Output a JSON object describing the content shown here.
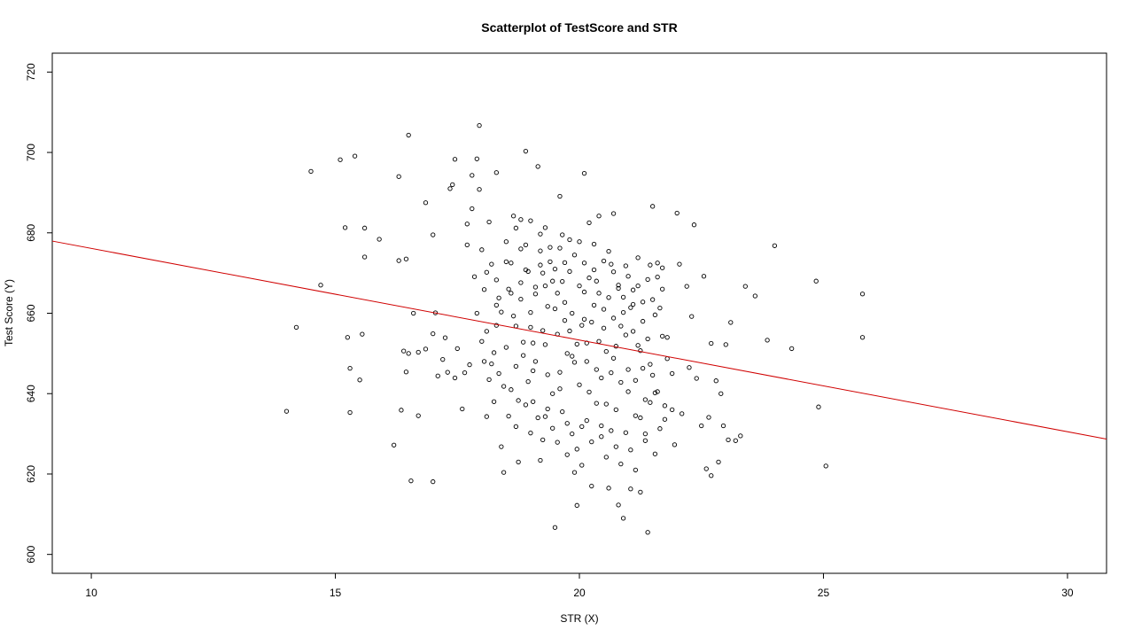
{
  "chart_data": {
    "type": "scatter",
    "title": "Scatterplot of TestScore and STR",
    "xlabel": "STR (X)",
    "ylabel": "Test Score (Y)",
    "xlim": [
      9.2,
      30.8
    ],
    "ylim": [
      595.3,
      724.7
    ],
    "x_ticks": [
      10,
      15,
      20,
      25,
      30
    ],
    "y_ticks": [
      600,
      620,
      640,
      660,
      680,
      700,
      720
    ],
    "grid": false,
    "legend": "none",
    "colors": {
      "points": "#000000",
      "regression_line": "#d00000"
    },
    "regression_line": {
      "intercept": 698.93,
      "slope": -2.28,
      "x_range": [
        9.2,
        30.8
      ]
    },
    "points": [
      [
        14.0,
        635.6
      ],
      [
        14.2,
        656.5
      ],
      [
        14.5,
        695.3
      ],
      [
        14.7,
        667.0
      ],
      [
        15.1,
        698.2
      ],
      [
        15.2,
        681.3
      ],
      [
        15.25,
        654.0
      ],
      [
        15.3,
        635.3
      ],
      [
        15.3,
        646.3
      ],
      [
        15.4,
        699.1
      ],
      [
        15.5,
        643.4
      ],
      [
        15.55,
        654.8
      ],
      [
        15.6,
        681.2
      ],
      [
        15.6,
        674.0
      ],
      [
        15.9,
        678.4
      ],
      [
        16.2,
        627.2
      ],
      [
        16.3,
        694.0
      ],
      [
        16.3,
        673.1
      ],
      [
        16.35,
        635.9
      ],
      [
        16.4,
        650.6
      ],
      [
        16.45,
        645.4
      ],
      [
        16.5,
        650.0
      ],
      [
        16.45,
        673.5
      ],
      [
        16.5,
        704.3
      ],
      [
        16.55,
        618.3
      ],
      [
        16.6,
        660.0
      ],
      [
        16.7,
        634.5
      ],
      [
        16.7,
        650.3
      ],
      [
        16.85,
        687.5
      ],
      [
        16.85,
        651.1
      ],
      [
        17.0,
        679.5
      ],
      [
        17.0,
        654.9
      ],
      [
        17.0,
        618.1
      ],
      [
        17.05,
        660.1
      ],
      [
        17.1,
        644.4
      ],
      [
        17.2,
        648.5
      ],
      [
        17.25,
        653.9
      ],
      [
        17.3,
        645.3
      ],
      [
        17.35,
        691.0
      ],
      [
        17.4,
        692.0
      ],
      [
        17.45,
        698.3
      ],
      [
        17.45,
        643.9
      ],
      [
        17.5,
        651.2
      ],
      [
        17.6,
        636.2
      ],
      [
        17.65,
        645.2
      ],
      [
        17.7,
        682.2
      ],
      [
        17.7,
        677.0
      ],
      [
        17.75,
        647.2
      ],
      [
        17.8,
        694.3
      ],
      [
        17.8,
        686.0
      ],
      [
        17.85,
        669.1
      ],
      [
        17.9,
        698.4
      ],
      [
        17.95,
        706.7
      ],
      [
        17.95,
        690.8
      ],
      [
        18.0,
        675.8
      ],
      [
        18.05,
        665.9
      ],
      [
        18.1,
        655.5
      ],
      [
        18.1,
        634.3
      ],
      [
        18.15,
        682.7
      ],
      [
        18.2,
        672.2
      ],
      [
        18.25,
        650.2
      ],
      [
        18.3,
        695.0
      ],
      [
        18.3,
        662.0
      ],
      [
        18.35,
        645.0
      ],
      [
        18.4,
        626.8
      ],
      [
        18.45,
        620.4
      ],
      [
        18.5,
        677.8
      ],
      [
        18.55,
        666.0
      ],
      [
        18.6,
        672.5
      ],
      [
        18.6,
        641.0
      ],
      [
        18.65,
        684.2
      ],
      [
        18.7,
        656.8
      ],
      [
        18.7,
        631.8
      ],
      [
        18.75,
        623.0
      ],
      [
        18.8,
        683.3
      ],
      [
        18.8,
        663.5
      ],
      [
        18.85,
        649.5
      ],
      [
        18.9,
        700.3
      ],
      [
        18.9,
        637.2
      ],
      [
        18.95,
        670.4
      ],
      [
        19.0,
        656.5
      ],
      [
        19.0,
        630.2
      ],
      [
        19.05,
        645.7
      ],
      [
        19.1,
        664.8
      ],
      [
        19.15,
        696.5
      ],
      [
        19.2,
        679.7
      ],
      [
        19.2,
        623.4
      ],
      [
        19.25,
        670.0
      ],
      [
        19.3,
        652.2
      ],
      [
        19.3,
        634.3
      ],
      [
        19.35,
        661.7
      ],
      [
        19.4,
        672.8
      ],
      [
        19.45,
        640.0
      ],
      [
        19.5,
        606.7
      ],
      [
        19.55,
        665.0
      ],
      [
        19.6,
        689.1
      ],
      [
        19.6,
        645.3
      ],
      [
        19.65,
        679.5
      ],
      [
        19.7,
        658.2
      ],
      [
        19.75,
        632.6
      ],
      [
        19.8,
        670.4
      ],
      [
        19.85,
        649.3
      ],
      [
        19.9,
        620.4
      ],
      [
        19.95,
        612.2
      ],
      [
        20.0,
        666.8
      ],
      [
        20.0,
        642.2
      ],
      [
        20.05,
        631.8
      ],
      [
        20.1,
        694.8
      ],
      [
        20.1,
        658.5
      ],
      [
        20.15,
        648.0
      ],
      [
        20.2,
        682.5
      ],
      [
        20.25,
        617.0
      ],
      [
        20.3,
        670.8
      ],
      [
        20.35,
        646.0
      ],
      [
        20.4,
        684.2
      ],
      [
        20.45,
        629.3
      ],
      [
        20.5,
        661.0
      ],
      [
        20.55,
        637.4
      ],
      [
        20.6,
        616.5
      ],
      [
        20.65,
        672.2
      ],
      [
        20.7,
        684.8
      ],
      [
        20.7,
        648.8
      ],
      [
        20.75,
        626.8
      ],
      [
        20.8,
        612.3
      ],
      [
        20.85,
        656.8
      ],
      [
        20.9,
        609.0
      ],
      [
        20.95,
        671.8
      ],
      [
        21.0,
        640.5
      ],
      [
        21.05,
        616.3
      ],
      [
        21.1,
        662.2
      ],
      [
        21.15,
        634.5
      ],
      [
        21.2,
        652.0
      ],
      [
        21.25,
        615.5
      ],
      [
        21.3,
        646.3
      ],
      [
        21.35,
        628.3
      ],
      [
        21.4,
        605.5
      ],
      [
        21.45,
        672.0
      ],
      [
        21.5,
        686.6
      ],
      [
        21.5,
        644.6
      ],
      [
        21.55,
        625.0
      ],
      [
        21.6,
        672.5
      ],
      [
        21.65,
        661.3
      ],
      [
        21.7,
        671.3
      ],
      [
        21.75,
        633.6
      ],
      [
        21.8,
        654.0
      ],
      [
        21.9,
        645.0
      ],
      [
        21.95,
        627.3
      ],
      [
        22.0,
        684.9
      ],
      [
        22.05,
        672.2
      ],
      [
        22.1,
        635.0
      ],
      [
        22.2,
        666.7
      ],
      [
        22.25,
        646.5
      ],
      [
        22.3,
        659.2
      ],
      [
        22.35,
        682.0
      ],
      [
        22.4,
        643.8
      ],
      [
        22.5,
        632.0
      ],
      [
        22.55,
        669.2
      ],
      [
        22.6,
        621.3
      ],
      [
        22.65,
        634.1
      ],
      [
        22.7,
        652.5
      ],
      [
        22.7,
        619.6
      ],
      [
        22.8,
        643.2
      ],
      [
        22.85,
        623.0
      ],
      [
        22.9,
        640.0
      ],
      [
        22.95,
        632.0
      ],
      [
        23.0,
        652.2
      ],
      [
        23.05,
        628.5
      ],
      [
        23.1,
        657.7
      ],
      [
        23.2,
        628.3
      ],
      [
        23.3,
        629.5
      ],
      [
        23.4,
        666.7
      ],
      [
        23.6,
        664.3
      ],
      [
        23.85,
        653.3
      ],
      [
        24.0,
        676.8
      ],
      [
        24.35,
        651.2
      ],
      [
        24.85,
        668.0
      ],
      [
        24.9,
        636.7
      ],
      [
        25.05,
        622.0
      ],
      [
        25.8,
        664.8
      ],
      [
        25.8,
        654.0
      ],
      [
        18.8,
        676.0
      ],
      [
        18.9,
        670.8
      ],
      [
        19.0,
        660.2
      ],
      [
        19.05,
        652.6
      ],
      [
        19.1,
        648.0
      ],
      [
        19.2,
        672.0
      ],
      [
        19.25,
        655.7
      ],
      [
        19.3,
        666.8
      ],
      [
        19.35,
        644.7
      ],
      [
        19.45,
        668.0
      ],
      [
        19.5,
        661.1
      ],
      [
        19.55,
        654.8
      ],
      [
        19.6,
        641.2
      ],
      [
        19.65,
        667.9
      ],
      [
        19.7,
        662.7
      ],
      [
        19.75,
        650.0
      ],
      [
        19.8,
        655.6
      ],
      [
        19.85,
        660.0
      ],
      [
        19.9,
        647.8
      ],
      [
        19.95,
        652.3
      ],
      [
        20.05,
        657.0
      ],
      [
        20.1,
        665.3
      ],
      [
        20.15,
        652.6
      ],
      [
        20.2,
        640.4
      ],
      [
        20.25,
        657.8
      ],
      [
        20.3,
        662.0
      ],
      [
        20.35,
        668.0
      ],
      [
        20.4,
        653.0
      ],
      [
        20.45,
        643.9
      ],
      [
        20.5,
        656.3
      ],
      [
        20.55,
        650.5
      ],
      [
        20.6,
        663.9
      ],
      [
        20.65,
        645.2
      ],
      [
        20.7,
        658.8
      ],
      [
        20.75,
        651.8
      ],
      [
        20.8,
        667.0
      ],
      [
        20.85,
        642.8
      ],
      [
        20.9,
        660.2
      ],
      [
        20.95,
        654.6
      ],
      [
        21.0,
        646.0
      ],
      [
        21.05,
        661.4
      ],
      [
        21.1,
        655.5
      ],
      [
        21.15,
        643.3
      ],
      [
        21.2,
        666.8
      ],
      [
        21.25,
        650.7
      ],
      [
        21.3,
        658.0
      ],
      [
        21.35,
        638.5
      ],
      [
        21.4,
        653.6
      ],
      [
        21.45,
        647.3
      ],
      [
        21.55,
        659.6
      ],
      [
        21.6,
        640.5
      ],
      [
        21.7,
        654.3
      ],
      [
        21.8,
        648.7
      ],
      [
        21.9,
        636.0
      ],
      [
        18.2,
        647.4
      ],
      [
        18.25,
        638.0
      ],
      [
        18.3,
        657.0
      ],
      [
        18.35,
        663.8
      ],
      [
        18.45,
        641.8
      ],
      [
        18.5,
        651.5
      ],
      [
        18.55,
        634.4
      ],
      [
        18.65,
        659.3
      ],
      [
        18.7,
        646.8
      ],
      [
        18.75,
        638.3
      ],
      [
        18.85,
        652.8
      ],
      [
        18.95,
        643.0
      ],
      [
        19.05,
        638.0
      ],
      [
        19.15,
        634.0
      ],
      [
        19.25,
        628.5
      ],
      [
        19.35,
        636.2
      ],
      [
        19.45,
        631.4
      ],
      [
        19.55,
        627.9
      ],
      [
        19.65,
        635.5
      ],
      [
        19.75,
        624.8
      ],
      [
        19.85,
        630.0
      ],
      [
        19.95,
        626.2
      ],
      [
        20.05,
        622.2
      ],
      [
        20.15,
        633.3
      ],
      [
        20.25,
        628.0
      ],
      [
        20.35,
        637.6
      ],
      [
        20.45,
        632.0
      ],
      [
        20.55,
        624.2
      ],
      [
        20.65,
        630.8
      ],
      [
        20.75,
        636.0
      ],
      [
        20.85,
        622.5
      ],
      [
        20.95,
        630.3
      ],
      [
        21.05,
        626.0
      ],
      [
        21.15,
        621.0
      ],
      [
        21.25,
        634.0
      ],
      [
        21.35,
        630.0
      ],
      [
        21.45,
        637.8
      ],
      [
        21.55,
        640.2
      ],
      [
        21.65,
        631.3
      ],
      [
        21.75,
        637.0
      ],
      [
        17.9,
        660.0
      ],
      [
        18.0,
        653.0
      ],
      [
        18.05,
        648.0
      ],
      [
        18.1,
        670.2
      ],
      [
        18.15,
        643.5
      ],
      [
        18.3,
        668.3
      ],
      [
        18.4,
        660.3
      ],
      [
        18.5,
        672.8
      ],
      [
        18.6,
        665.0
      ],
      [
        18.7,
        681.2
      ],
      [
        18.8,
        667.6
      ],
      [
        18.9,
        677.0
      ],
      [
        19.0,
        683.0
      ],
      [
        19.1,
        666.5
      ],
      [
        19.2,
        675.5
      ],
      [
        19.3,
        681.3
      ],
      [
        19.4,
        676.4
      ],
      [
        19.5,
        671.0
      ],
      [
        19.6,
        676.2
      ],
      [
        19.7,
        672.6
      ],
      [
        19.8,
        678.3
      ],
      [
        19.9,
        674.5
      ],
      [
        20.0,
        677.8
      ],
      [
        20.1,
        672.5
      ],
      [
        20.2,
        668.8
      ],
      [
        20.3,
        677.2
      ],
      [
        20.4,
        665.0
      ],
      [
        20.5,
        673.0
      ],
      [
        20.6,
        675.4
      ],
      [
        20.7,
        670.3
      ],
      [
        20.8,
        666.2
      ],
      [
        20.9,
        664.0
      ],
      [
        21.0,
        669.2
      ],
      [
        21.1,
        665.8
      ],
      [
        21.2,
        673.8
      ],
      [
        21.3,
        662.8
      ],
      [
        21.4,
        668.4
      ],
      [
        21.5,
        663.4
      ],
      [
        21.6,
        669.0
      ],
      [
        21.7,
        666.0
      ]
    ]
  }
}
